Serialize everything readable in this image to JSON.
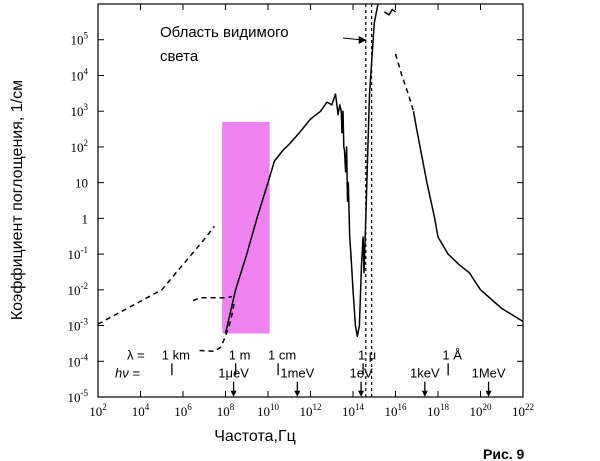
{
  "chart_data": {
    "type": "line",
    "xlabel": "Частота,Гц",
    "ylabel": "Коэффициент поглощения, 1/см",
    "x_scale": "log",
    "y_scale": "log",
    "xlim": [
      100.0,
      1e+22
    ],
    "ylim": [
      1e-05,
      1000000.0
    ],
    "x_ticks": [
      {
        "base": "10",
        "exp": "2"
      },
      {
        "base": "10",
        "exp": "4"
      },
      {
        "base": "10",
        "exp": "6"
      },
      {
        "base": "10",
        "exp": "8"
      },
      {
        "base": "10",
        "exp": "10"
      },
      {
        "base": "10",
        "exp": "12"
      },
      {
        "base": "10",
        "exp": "14"
      },
      {
        "base": "10",
        "exp": "16"
      },
      {
        "base": "10",
        "exp": "18"
      },
      {
        "base": "10",
        "exp": "20"
      },
      {
        "base": "10",
        "exp": "22"
      }
    ],
    "y_ticks": [
      {
        "base": "10",
        "exp": "-5"
      },
      {
        "base": "10",
        "exp": "-4"
      },
      {
        "base": "10",
        "exp": "-3"
      },
      {
        "base": "10",
        "exp": "-2"
      },
      {
        "base": "10",
        "exp": "-1"
      },
      {
        "base": "1",
        "exp": ""
      },
      {
        "base": "10",
        "exp": ""
      },
      {
        "base": "10",
        "exp": "2"
      },
      {
        "base": "10",
        "exp": "3"
      },
      {
        "base": "10",
        "exp": "4"
      },
      {
        "base": "10",
        "exp": "5"
      }
    ],
    "series": [
      {
        "style": "dashed",
        "points": [
          [
            100.0,
            0.0011
          ],
          [
            100000.0,
            0.01
          ],
          [
            10000000.0,
            0.26
          ],
          [
            30000000.0,
            0.6
          ]
        ]
      },
      {
        "style": "dashed",
        "points": [
          [
            3000000.0,
            0.005
          ],
          [
            7000000.0,
            0.006
          ],
          [
            40000000.0,
            0.006
          ],
          [
            120000000.0,
            0.006
          ],
          [
            200000000.0,
            0.0065
          ]
        ]
      },
      {
        "style": "dashed",
        "points": [
          [
            6000000.0,
            0.0002
          ],
          [
            30000000.0,
            0.00019
          ],
          [
            60000000.0,
            0.00025
          ],
          [
            100000000.0,
            0.0005
          ],
          [
            150000000.0,
            0.001
          ],
          [
            200000000.0,
            0.002
          ],
          [
            250000000.0,
            0.004
          ]
        ]
      },
      {
        "style": "solid",
        "points": [
          [
            100000000.0,
            0.0006
          ],
          [
            300000000.0,
            0.01
          ],
          [
            1000000000.0,
            0.1
          ],
          [
            3000000000.0,
            1
          ],
          [
            10000000000.0,
            10.0
          ],
          [
            20000000000.0,
            40.0
          ],
          [
            50000000000.0,
            80.0
          ],
          [
            100000000000.0,
            120.0
          ],
          [
            300000000000.0,
            250.0
          ],
          [
            1000000000000.0,
            600.0
          ],
          [
            3000000000000.0,
            1000.0
          ],
          [
            6000000000000.0,
            1800.0
          ],
          [
            10000000000000.0,
            1500.0
          ],
          [
            15000000000000.0,
            3000.0
          ],
          [
            20000000000000.0,
            800.0
          ],
          [
            24000000000000.0,
            1500.0
          ],
          [
            28000000000000.0,
            1000.0
          ],
          [
            30000000000000.0,
            250.0
          ],
          [
            34000000000000.0,
            1000.0
          ],
          [
            37000000000000.0,
            100.0
          ],
          [
            40000000000000.0,
            80.0
          ],
          [
            45000000000000.0,
            20.0
          ],
          [
            50000000000000.0,
            100.0
          ],
          [
            55000000000000.0,
            3
          ],
          [
            60000000000000.0,
            10.0
          ],
          [
            70000000000000.0,
            0.3
          ],
          [
            80000000000000.0,
            0.1
          ],
          [
            100000000000000.0,
            0.01
          ],
          [
            130000000000000.0,
            0.001
          ],
          [
            160000000000000.0,
            0.0005
          ],
          [
            200000000000000.0,
            0.001
          ],
          [
            250000000000000.0,
            0.05
          ],
          [
            300000000000000.0,
            0.3
          ],
          [
            330000000000000.0,
            0.03
          ],
          [
            350000000000000.0,
            0.1
          ],
          [
            400000000000000.0,
            1
          ],
          [
            500000000000000.0,
            100.0
          ],
          [
            600000000000000.0,
            3000.0
          ],
          [
            800000000000000.0,
            40000.0
          ],
          [
            1000000000000000.0,
            300000.0
          ],
          [
            1500000000000000.0,
            1000000.0
          ]
        ]
      },
      {
        "style": "solid",
        "points": [
          [
            3000000000000000.0,
            600000.0
          ],
          [
            5000000000000000.0,
            500000.0
          ],
          [
            7000000000000000.0,
            700000.0
          ],
          [
            1e+16,
            600000.0
          ]
        ]
      },
      {
        "style": "dashed",
        "points": [
          [
            1e+16,
            40000.0
          ],
          [
            2e+16,
            10000.0
          ],
          [
            4e+16,
            3000.0
          ],
          [
            7e+16,
            1000.0
          ]
        ]
      },
      {
        "style": "solid",
        "points": [
          [
            7e+16,
            1000.0
          ],
          [
            1e+17,
            300.0
          ],
          [
            3e+17,
            10.0
          ],
          [
            7e+17,
            1
          ],
          [
            1e+18,
            0.3
          ],
          [
            3e+18,
            0.1
          ],
          [
            1e+19,
            0.05
          ],
          [
            3e+19,
            0.03
          ],
          [
            1e+20,
            0.01
          ],
          [
            1e+21,
            0.003
          ],
          [
            1e+22,
            0.0013
          ]
        ]
      }
    ],
    "highlight_band": {
      "x_range": [
        70000000.0,
        12000000000.0
      ],
      "y_range": [
        0.0006,
        500.0
      ],
      "color": "#ee82ee"
    },
    "visible_light_lines": [
      400000000000000.0,
      750000000000000.0
    ],
    "wavelength_row": {
      "symbol": "λ =",
      "markers": [
        {
          "label": "1 km",
          "x": 300000.0
        },
        {
          "label": "1 m",
          "x": 300000000.0
        },
        {
          "label": "1 cm",
          "x": 30000000000.0
        },
        {
          "label": "1 μ",
          "x": 300000000000000.0
        },
        {
          "label": "1 Å",
          "x": 3e+18
        }
      ]
    },
    "energy_row": {
      "symbol": "hν =",
      "markers": [
        {
          "label": "1μeV",
          "x": 240000000.0
        },
        {
          "label": "1meV",
          "x": 240000000000.0
        },
        {
          "label": "1eV",
          "x": 240000000000000.0
        },
        {
          "label": "1keV",
          "x": 2.4e+17
        },
        {
          "label": "1MeV",
          "x": 2.4e+20
        }
      ]
    },
    "annotation": {
      "line1": "Область видимого",
      "line2": "света",
      "points_to_x": 440000000000000.0
    }
  },
  "figure_label": "Рис. 9"
}
